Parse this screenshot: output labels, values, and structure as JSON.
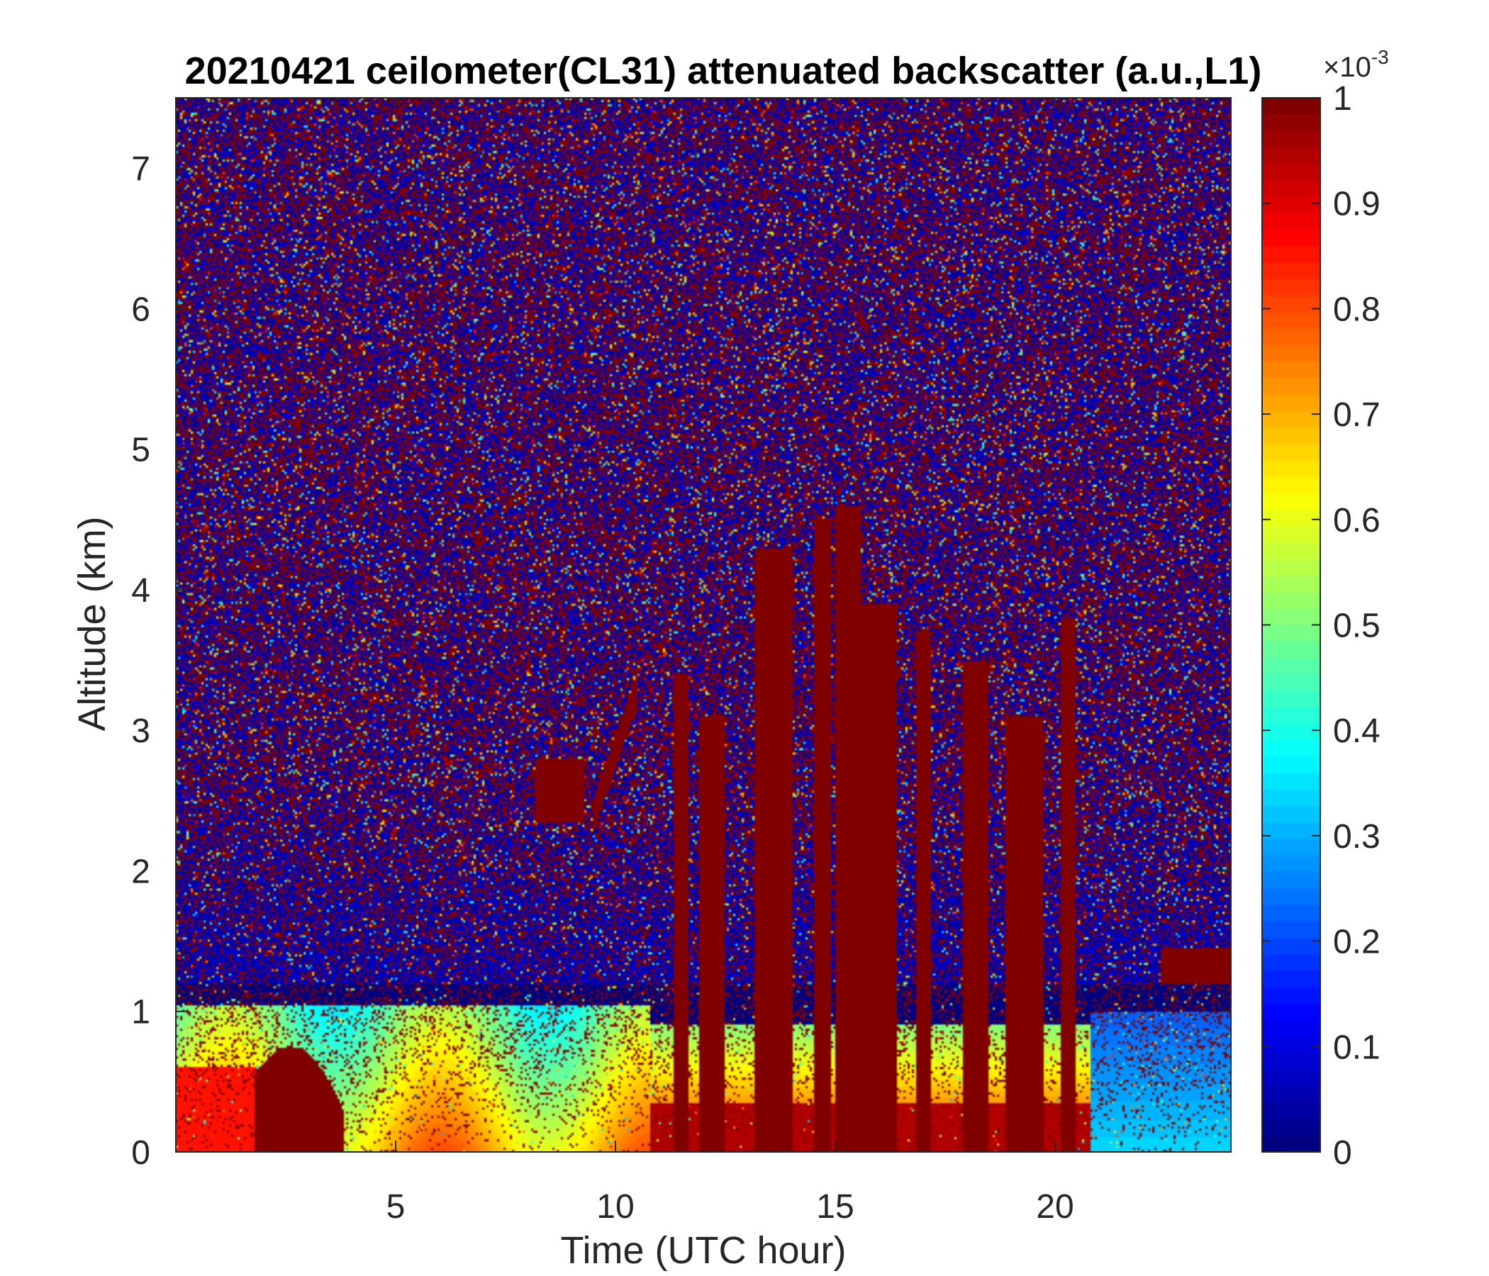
{
  "chart_data": {
    "type": "heatmap",
    "title": "20210421 ceilometer(CL31) attenuated backscatter (a.u.,L1)",
    "xlabel": "Time (UTC hour)",
    "ylabel": "Altitude (km)",
    "xlim": [
      0,
      24
    ],
    "ylim": [
      0,
      7.5
    ],
    "xticks": [
      5,
      10,
      15,
      20
    ],
    "yticks": [
      0,
      1,
      2,
      3,
      4,
      5,
      6,
      7
    ],
    "colorbar": {
      "colormap": "jet",
      "clim": [
        0,
        1
      ],
      "ticks": [
        0,
        0.1,
        0.2,
        0.3,
        0.4,
        0.5,
        0.6,
        0.7,
        0.8,
        0.9,
        1
      ],
      "exponent_base": "×10",
      "exponent_power": "-3"
    },
    "features": [
      {
        "desc": "aerosol layer top",
        "altitude_km": 1.05,
        "x_range": [
          0,
          10.5
        ]
      },
      {
        "desc": "saturated low cloud / fog patch",
        "x_range": [
          1.8,
          3.8
        ],
        "alt_range": [
          0,
          0.75
        ]
      },
      {
        "desc": "elevated aerosol patch",
        "x_range": [
          8.2,
          9.3
        ],
        "alt_range": [
          2.35,
          2.8
        ]
      },
      {
        "desc": "thin tilted plume",
        "x_range": [
          9.5,
          10.5
        ],
        "alt_range": [
          2.4,
          3.3
        ]
      },
      {
        "desc": "tall strong-signal columns",
        "x": [
          11.5,
          12.2,
          13.6,
          14.7,
          15.3,
          16.0,
          17.0,
          18.2,
          19.3,
          20.3
        ],
        "top_km": [
          3.4,
          3.1,
          4.3,
          4.5,
          4.6,
          3.9,
          3.7,
          3.5,
          3.1,
          3.8
        ]
      },
      {
        "desc": "small elevated cloud",
        "x_range": [
          22.4,
          24
        ],
        "alt_range": [
          1.2,
          1.45
        ]
      }
    ]
  }
}
